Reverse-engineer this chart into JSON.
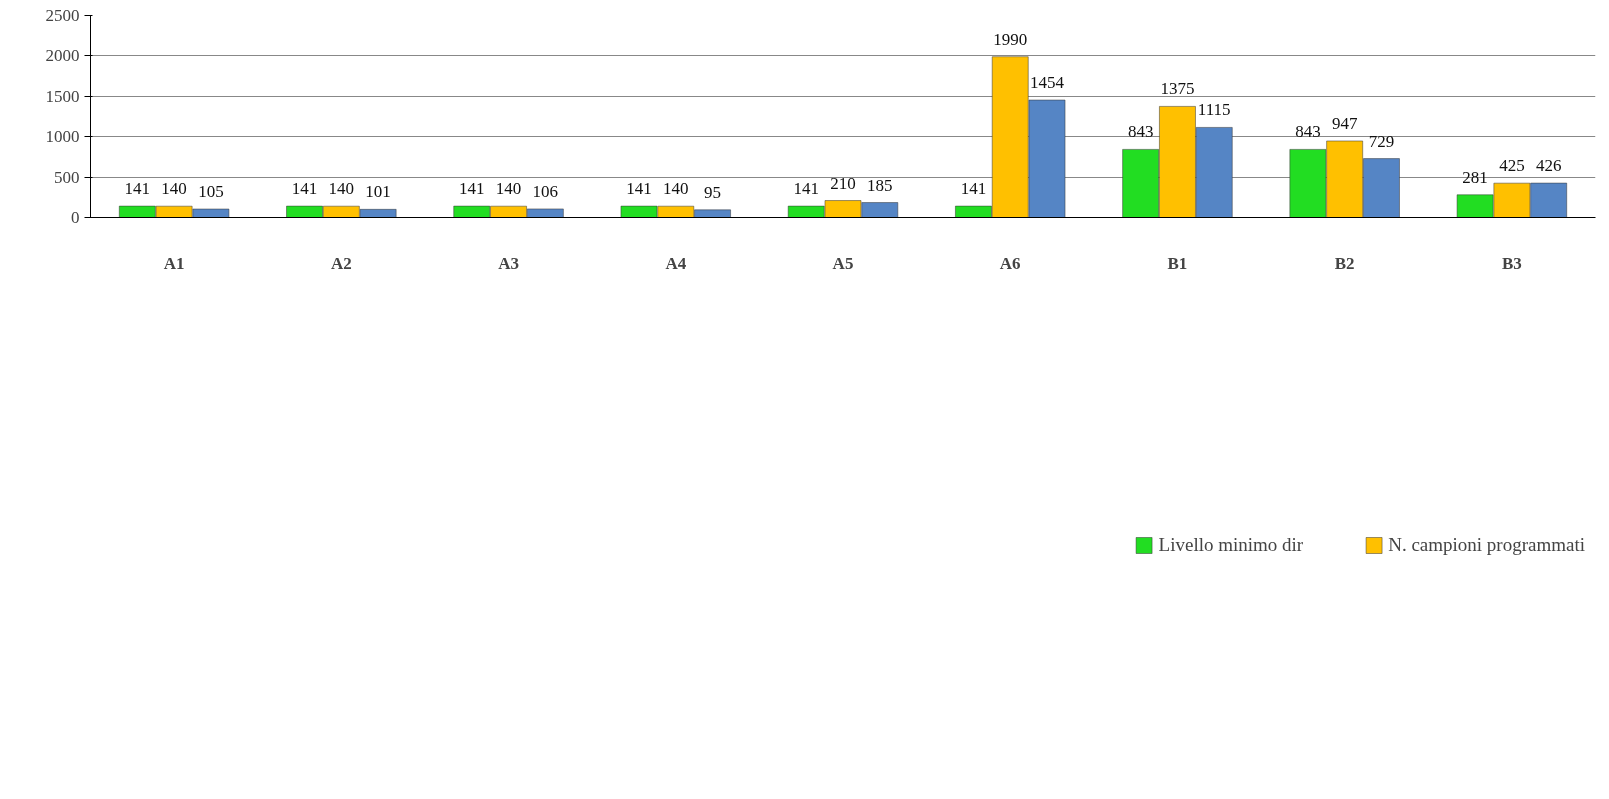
{
  "chart_data": {
    "type": "bar",
    "categories": [
      "A1",
      "A2",
      "A3",
      "A4",
      "A5",
      "A6",
      "B1",
      "B2",
      "B3"
    ],
    "series": [
      {
        "name": "Livello minimo dir",
        "color": "#22dd22",
        "values": [
          141,
          141,
          141,
          141,
          141,
          141,
          843,
          843,
          281
        ]
      },
      {
        "name": "N. campioni programmati",
        "color": "#ffc000",
        "values": [
          140,
          140,
          140,
          140,
          210,
          1990,
          1375,
          947,
          425
        ]
      },
      {
        "color": "#5585c5",
        "values": [
          105,
          101,
          106,
          95,
          185,
          1454,
          1115,
          729,
          426
        ]
      }
    ],
    "ylim": [
      0,
      2500
    ],
    "yticks": [
      0,
      500,
      1000,
      1500,
      2000,
      2500
    ],
    "grid": "y",
    "legend": "bottom",
    "data_labels": true
  }
}
